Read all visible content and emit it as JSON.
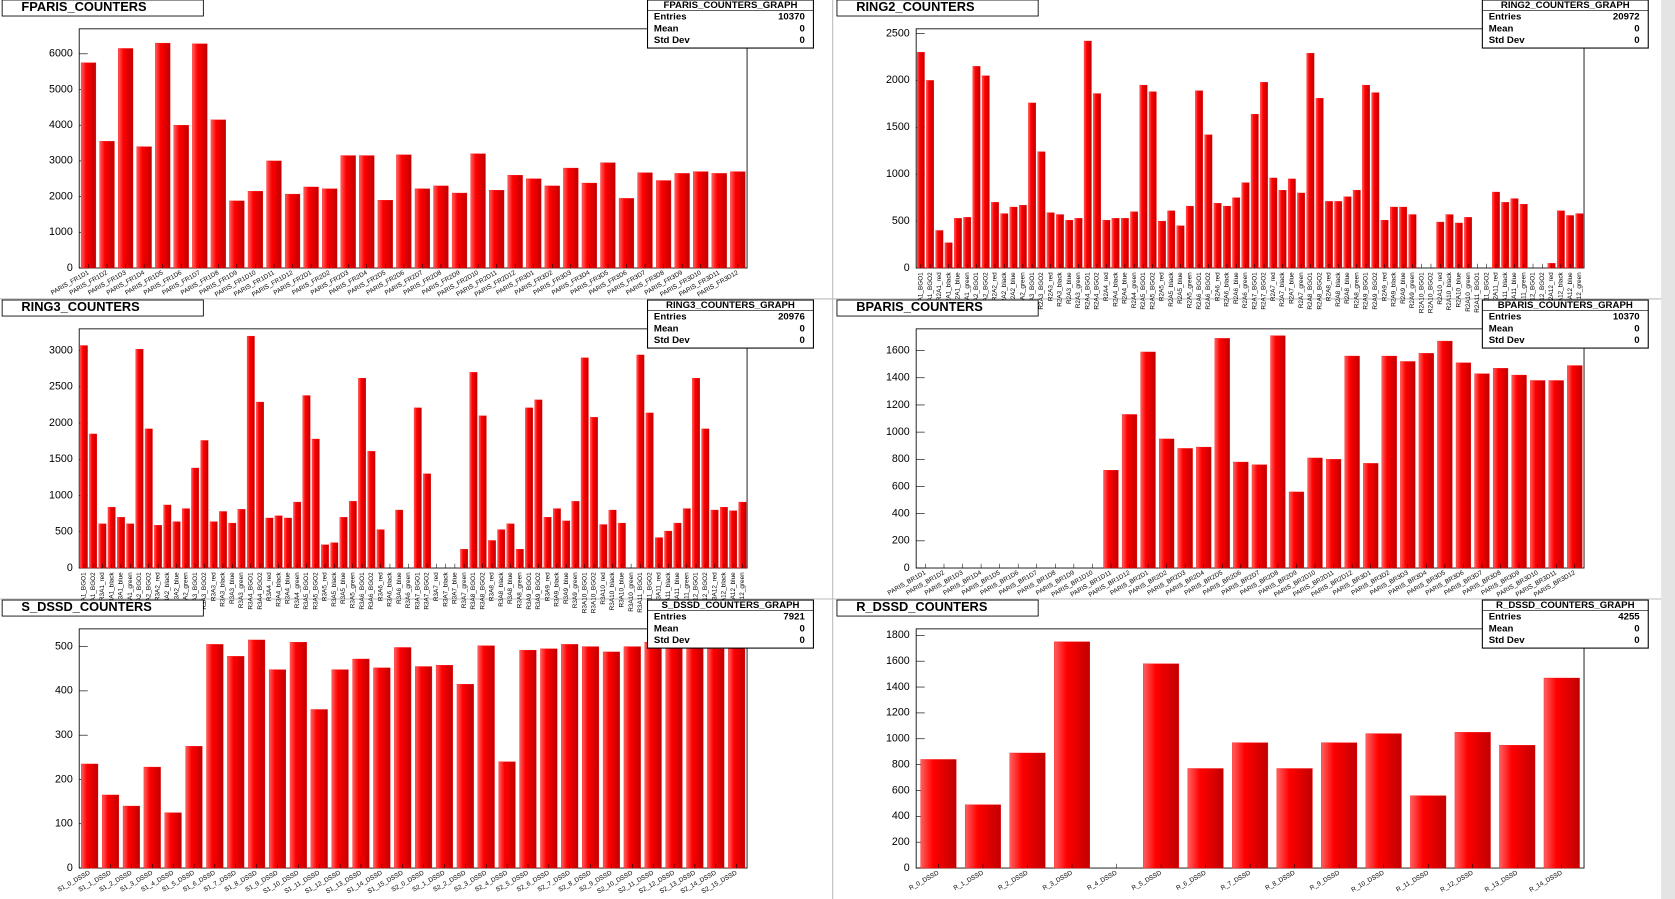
{
  "chart_data": [
    {
      "type": "bar",
      "title": "FPARIS_COUNTERS",
      "color": "#ff0000",
      "stats_title": "FPARIS_COUNTERS_GRAPH",
      "stats": [
        {
          "label": "Entries",
          "value": 10370
        },
        {
          "label": "Mean",
          "value": 0
        },
        {
          "label": "Std Dev",
          "value": 0
        }
      ],
      "categories": [
        "PARIS_FR1D1",
        "PARIS_FR1D2",
        "PARIS_FR1D3",
        "PARIS_FR1D4",
        "PARIS_FR1D5",
        "PARIS_FR1D6",
        "PARIS_FR1D7",
        "PARIS_FR1D8",
        "PARIS_FR1D9",
        "PARIS_FR1D10",
        "PARIS_FR1D11",
        "PARIS_FR1D12",
        "PARIS_FR2D1",
        "PARIS_FR2D2",
        "PARIS_FR2D3",
        "PARIS_FR2D4",
        "PARIS_FR2D5",
        "PARIS_FR2D6",
        "PARIS_FR2D7",
        "PARIS_FR2D8",
        "PARIS_FR2D9",
        "PARIS_FR2D10",
        "PARIS_FR2D11",
        "PARIS_FR2D12",
        "PARIS_FR3D1",
        "PARIS_FR3D2",
        "PARIS_FR3D3",
        "PARIS_FR3D4",
        "PARIS_FR3D5",
        "PARIS_FR3D6",
        "PARIS_FR3D7",
        "PARIS_FR3D8",
        "PARIS_FR3D9",
        "PARIS_FR3D10",
        "PARIS_FR3D11",
        "PARIS_FR3D12"
      ],
      "values": [
        5750,
        3550,
        6150,
        3400,
        6300,
        4000,
        6280,
        4150,
        1880,
        2150,
        3000,
        2070,
        2270,
        2220,
        3150,
        3150,
        1900,
        3170,
        2220,
        2300,
        2100,
        3200,
        2180,
        2600,
        2500,
        2300,
        2800,
        2380,
        2950,
        1950,
        2670,
        2450,
        2650,
        2700,
        2650,
        2700
      ],
      "ylim": [
        0,
        6700
      ],
      "yticks": [
        0,
        1000,
        2000,
        3000,
        4000,
        5000,
        6000
      ]
    },
    {
      "type": "bar",
      "title": "RING2_COUNTERS",
      "color": "#ff0000",
      "stats_title": "RING2_COUNTERS_GRAPH",
      "stats": [
        {
          "label": "Entries",
          "value": 20972
        },
        {
          "label": "Mean",
          "value": 0
        },
        {
          "label": "Std Dev",
          "value": 0
        }
      ],
      "categories": [
        "R2A1_BGO1",
        "R2A1_BGO2",
        "R2A1_red",
        "R2A1_black",
        "R2A1_blue",
        "R2A1_green",
        "R2A2_BGO1",
        "R2A2_BGO2",
        "R2A2_red",
        "R2A2_black",
        "R2A2_blue",
        "R2A2_green",
        "R2A3_BGO1",
        "R2A3_BGO2",
        "R2A3_red",
        "R2A3_black",
        "R2A3_blue",
        "R2A3_green",
        "R2A4_BGO1",
        "R2A4_BGO2",
        "R2A4_red",
        "R2A4_black",
        "R2A4_blue",
        "R2A4_green",
        "R2A5_BGO1",
        "R2A5_BGO2",
        "R2A5_red",
        "R2A5_black",
        "R2A5_blue",
        "R2A5_green",
        "R2A6_BGO1",
        "R2A6_BGO2",
        "R2A6_red",
        "R2A6_black",
        "R2A6_blue",
        "R2A6_green",
        "R2A7_BGO1",
        "R2A7_BGO2",
        "R2A7_red",
        "R2A7_black",
        "R2A7_blue",
        "R2A7_green",
        "R2A8_BGO1",
        "R2A8_BGO2",
        "R2A8_red",
        "R2A8_black",
        "R2A8_blue",
        "R2A8_green",
        "R2A9_BGO1",
        "R2A9_BGO2",
        "R2A9_red",
        "R2A9_black",
        "R2A9_blue",
        "R2A9_green",
        "R2A10_BGO1",
        "R2A10_BGO2",
        "R2A10_red",
        "R2A10_black",
        "R2A10_blue",
        "R2A10_green",
        "R2A11_BGO1",
        "R2A11_BGO2",
        "R2A11_red",
        "R2A11_black",
        "R2A11_blue",
        "R2A11_green",
        "R2A12_BGO1",
        "R2A12_BGO2",
        "R2A12_red",
        "R2A12_black",
        "R2A12_blue",
        "R2A12_green"
      ],
      "values": [
        2300,
        2000,
        400,
        270,
        530,
        540,
        2150,
        2050,
        700,
        580,
        650,
        670,
        1760,
        1240,
        590,
        570,
        510,
        530,
        2420,
        1860,
        510,
        530,
        530,
        600,
        1950,
        1880,
        500,
        610,
        450,
        660,
        1890,
        1420,
        690,
        660,
        750,
        910,
        1640,
        1980,
        960,
        830,
        950,
        800,
        2290,
        1810,
        710,
        710,
        760,
        830,
        1950,
        1870,
        510,
        650,
        650,
        570,
        0,
        0,
        490,
        570,
        480,
        540,
        0,
        0,
        810,
        700,
        740,
        680,
        0,
        0,
        50,
        610,
        560,
        580
      ],
      "ylim": [
        0,
        2550
      ],
      "yticks": [
        0,
        500,
        1000,
        1500,
        2000,
        2500
      ]
    },
    {
      "type": "bar",
      "title": "RING3_COUNTERS",
      "color": "#ff0000",
      "stats_title": "RING3_COUNTERS_GRAPH",
      "stats": [
        {
          "label": "Entries",
          "value": 20976
        },
        {
          "label": "Mean",
          "value": 0
        },
        {
          "label": "Std Dev",
          "value": 0
        }
      ],
      "categories": [
        "R3A1_BGO1",
        "R3A1_BGO2",
        "R3A1_red",
        "R3A1_black",
        "R3A1_blue",
        "R3A1_green",
        "R3A2_BGO1",
        "R3A2_BGO2",
        "R3A2_red",
        "R3A2_black",
        "R3A2_blue",
        "R3A2_green",
        "R3A3_BGO1",
        "R3A3_BGO2",
        "R3A3_red",
        "R3A3_black",
        "R3A3_blue",
        "R3A3_green",
        "R3A4_BGO1",
        "R3A4_BGO2",
        "R3A4_red",
        "R3A4_black",
        "R3A4_blue",
        "R3A4_green",
        "R3A5_BGO1",
        "R3A5_BGO2",
        "R3A5_red",
        "R3A5_black",
        "R3A5_blue",
        "R3A5_green",
        "R3A6_BGO1",
        "R3A6_BGO2",
        "R3A6_red",
        "R3A6_black",
        "R3A6_blue",
        "R3A6_green",
        "R3A7_BGO1",
        "R3A7_BGO2",
        "R3A7_red",
        "R3A7_black",
        "R3A7_blue",
        "R3A7_green",
        "R3A8_BGO1",
        "R3A8_BGO2",
        "R3A8_red",
        "R3A8_black",
        "R3A8_blue",
        "R3A8_green",
        "R3A9_BGO1",
        "R3A9_BGO2",
        "R3A9_red",
        "R3A9_black",
        "R3A9_blue",
        "R3A9_green",
        "R3A10_BGO1",
        "R3A10_BGO2",
        "R3A10_red",
        "R3A10_black",
        "R3A10_blue",
        "R3A10_green",
        "R3A11_BGO1",
        "R3A11_BGO2",
        "R3A11_red",
        "R3A11_black",
        "R3A11_blue",
        "R3A11_green",
        "R3A12_BGO1",
        "R3A12_BGO2",
        "R3A12_red",
        "R3A12_black",
        "R3A12_blue",
        "R3A12_green"
      ],
      "values": [
        3070,
        1850,
        610,
        840,
        700,
        610,
        3020,
        1920,
        590,
        870,
        640,
        820,
        1380,
        1760,
        640,
        780,
        620,
        810,
        3200,
        2290,
        690,
        720,
        690,
        910,
        2380,
        1780,
        320,
        350,
        700,
        920,
        2620,
        1610,
        530,
        0,
        800,
        0,
        2210,
        1300,
        0,
        0,
        0,
        260,
        2700,
        2100,
        380,
        530,
        610,
        260,
        2210,
        2320,
        700,
        820,
        650,
        920,
        2900,
        2080,
        600,
        800,
        620,
        0,
        2940,
        2140,
        420,
        510,
        620,
        820,
        2620,
        1920,
        800,
        840,
        790,
        910
      ],
      "ylim": [
        0,
        3300
      ],
      "yticks": [
        0,
        500,
        1000,
        1500,
        2000,
        2500,
        3000
      ]
    },
    {
      "type": "bar",
      "title": "BPARIS_COUNTERS",
      "color": "#ff0000",
      "stats_title": "BPARIS_COUNTERS_GRAPH",
      "stats": [
        {
          "label": "Entries",
          "value": 10370
        },
        {
          "label": "Mean",
          "value": 0
        },
        {
          "label": "Std Dev",
          "value": 0
        }
      ],
      "categories": [
        "PARIS_BR1D1",
        "PARIS_BR1D2",
        "PARIS_BR1D3",
        "PARIS_BR1D4",
        "PARIS_BR1D5",
        "PARIS_BR1D6",
        "PARIS_BR1D7",
        "PARIS_BR1D8",
        "PARIS_BR1D9",
        "PARIS_BR1D10",
        "PARIS_BR1D11",
        "PARIS_BR1D12",
        "PARIS_BR2D1",
        "PARIS_BR2D2",
        "PARIS_BR2D3",
        "PARIS_BR2D4",
        "PARIS_BR2D5",
        "PARIS_BR2D6",
        "PARIS_BR2D7",
        "PARIS_BR2D8",
        "PARIS_BR2D9",
        "PARIS_BR2D10",
        "PARIS_BR2D11",
        "PARIS_BR2D12",
        "PARIS_BR3D1",
        "PARIS_BR3D2",
        "PARIS_BR3D3",
        "PARIS_BR3D4",
        "PARIS_BR3D5",
        "PARIS_BR3D6",
        "PARIS_BR3D7",
        "PARIS_BR3D8",
        "PARIS_BR3D9",
        "PARIS_BR3D10",
        "PARIS_BR3D11",
        "PARIS_BR3D12"
      ],
      "values": [
        0,
        0,
        0,
        0,
        0,
        0,
        0,
        0,
        0,
        0,
        720,
        1130,
        1590,
        950,
        880,
        890,
        1690,
        780,
        760,
        1710,
        560,
        810,
        800,
        1560,
        770,
        1560,
        1520,
        1580,
        1670,
        1510,
        1430,
        1470,
        1420,
        1380,
        1380,
        1490
      ],
      "ylim": [
        0,
        1760
      ],
      "yticks": [
        0,
        200,
        400,
        600,
        800,
        1000,
        1200,
        1400,
        1600
      ]
    },
    {
      "type": "bar",
      "title": "S_DSSD_COUNTERS",
      "color": "#ff0000",
      "stats_title": "S_DSSD_COUNTERS_GRAPH",
      "stats": [
        {
          "label": "Entries",
          "value": 7921
        },
        {
          "label": "Mean",
          "value": 0
        },
        {
          "label": "Std Dev",
          "value": 0
        }
      ],
      "categories": [
        "S1_0_DSSD",
        "S1_1_DSSD",
        "S1_2_DSSD",
        "S1_3_DSSD",
        "S1_4_DSSD",
        "S1_5_DSSD",
        "S1_6_DSSD",
        "S1_7_DSSD",
        "S1_8_DSSD",
        "S1_9_DSSD",
        "S1_10_DSSD",
        "S1_11_DSSD",
        "S1_12_DSSD",
        "S1_13_DSSD",
        "S1_14_DSSD",
        "S1_15_DSSD",
        "S2_0_DSSD",
        "S2_1_DSSD",
        "S2_2_DSSD",
        "S2_3_DSSD",
        "S2_4_DSSD",
        "S2_5_DSSD",
        "S2_6_DSSD",
        "S2_7_DSSD",
        "S2_8_DSSD",
        "S2_9_DSSD",
        "S2_10_DSSD",
        "S2_11_DSSD",
        "S2_12_DSSD",
        "S2_13_DSSD",
        "S2_14_DSSD",
        "S2_15_DSSD"
      ],
      "values": [
        235,
        165,
        140,
        228,
        125,
        275,
        505,
        478,
        515,
        448,
        510,
        358,
        448,
        472,
        452,
        498,
        455,
        458,
        415,
        502,
        240,
        492,
        495,
        505,
        500,
        488,
        500,
        510,
        505,
        500,
        495,
        505
      ],
      "ylim": [
        0,
        540
      ],
      "yticks": [
        0,
        100,
        200,
        300,
        400,
        500
      ]
    },
    {
      "type": "bar",
      "title": "R_DSSD_COUNTERS",
      "color": "#ff0000",
      "stats_title": "R_DSSD_COUNTERS_GRAPH",
      "stats": [
        {
          "label": "Entries",
          "value": 4255
        },
        {
          "label": "Mean",
          "value": 0
        },
        {
          "label": "Std Dev",
          "value": 0
        }
      ],
      "categories": [
        "R_0_DSSD",
        "R_1_DSSD",
        "R_2_DSSD",
        "R_3_DSSD",
        "R_4_DSSD",
        "R_5_DSSD",
        "R_6_DSSD",
        "R_7_DSSD",
        "R_8_DSSD",
        "R_9_DSSD",
        "R_10_DSSD",
        "R_11_DSSD",
        "R_12_DSSD",
        "R_13_DSSD",
        "R_14_DSSD"
      ],
      "values": [
        840,
        490,
        890,
        1750,
        0,
        1580,
        770,
        970,
        770,
        970,
        1040,
        560,
        1050,
        950,
        1470
      ],
      "ylim": [
        0,
        1850
      ],
      "yticks": [
        0,
        200,
        400,
        600,
        800,
        1000,
        1200,
        1400,
        1600,
        1800
      ]
    }
  ]
}
